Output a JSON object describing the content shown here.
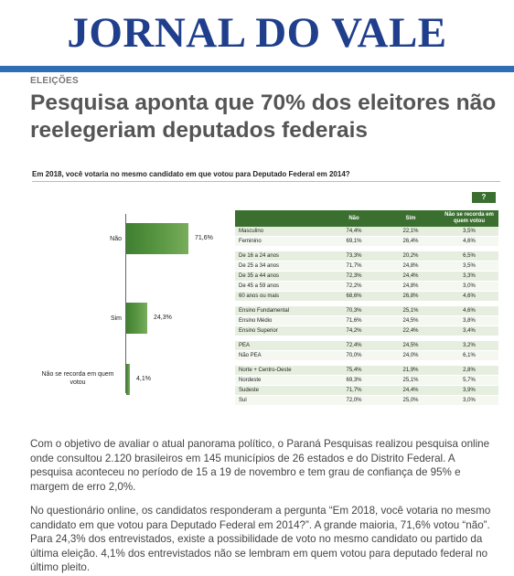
{
  "masthead": {
    "logo_text": "JORNAL DO VALE",
    "accent_color": "#1f3e8c",
    "bar_color": "#2f6db5"
  },
  "article": {
    "section": "ELEIÇÕES",
    "headline": "Pesquisa aponta que 70% dos eleitores não reelegeriam deputados federais",
    "paragraphs": [
      "Com o objetivo de avaliar o atual panorama político, o Paraná Pesquisas realizou pesquisa online onde consultou 2.120 brasileiros em 145 municípios  de 26 estados e do Distrito Federal. A pesquisa aconteceu no período de 15 a 19 de novembro e tem grau de confiança  de 95% e margem de erro 2,0%.",
      "No questionário online, os candidatos responderam a pergunta  “Em 2018, você votaria no mesmo candidato em que votou para Deputado Federal em 2014?”. A grande maioria, 71,6% votou “não”. Para 24,3% dos entrevistados, existe a possibilidade de voto no mesmo candidato ou partido da última eleição. 4,1% dos entrevistados não se lembram em quem votou para deputado federal no último pleito."
    ]
  },
  "figure": {
    "question": "Em 2018, você votaria no mesmo candidato em que votou para Deputado Federal em 2014?",
    "help_button": "?",
    "table": {
      "headers": [
        "",
        "Não",
        "Sim",
        "Não se recorda em quem votou"
      ],
      "groups": [
        [
          [
            "Masculino",
            "74,4%",
            "22,1%",
            "3,5%"
          ],
          [
            "Feminino",
            "69,1%",
            "26,4%",
            "4,6%"
          ]
        ],
        [
          [
            "De 16 a 24 anos",
            "73,3%",
            "20,2%",
            "6,5%"
          ],
          [
            "De 25 a 34 anos",
            "71,7%",
            "24,8%",
            "3,5%"
          ],
          [
            "De 35 a 44 anos",
            "72,3%",
            "24,4%",
            "3,3%"
          ],
          [
            "De 45 a 59 anos",
            "72,2%",
            "24,8%",
            "3,0%"
          ],
          [
            "60 anos ou mais",
            "68,6%",
            "26,8%",
            "4,6%"
          ]
        ],
        [
          [
            "Ensino Fundamental",
            "70,3%",
            "25,1%",
            "4,6%"
          ],
          [
            "Ensino Médio",
            "71,6%",
            "24,5%",
            "3,8%"
          ],
          [
            "Ensino Superior",
            "74,2%",
            "22,4%",
            "3,4%"
          ]
        ],
        [
          [
            "PEA",
            "72,4%",
            "24,5%",
            "3,2%"
          ],
          [
            "Não PEA",
            "70,0%",
            "24,0%",
            "6,1%"
          ]
        ],
        [
          [
            "Norte + Centro-Oeste",
            "75,4%",
            "21,9%",
            "2,8%"
          ],
          [
            "Nordeste",
            "69,3%",
            "25,1%",
            "5,7%"
          ],
          [
            "Sudeste",
            "71,7%",
            "24,4%",
            "3,9%"
          ],
          [
            "Sul",
            "72,0%",
            "25,0%",
            "3,0%"
          ]
        ]
      ]
    }
  },
  "chart_data": {
    "type": "bar",
    "orientation": "horizontal",
    "categories": [
      "Não",
      "Sim",
      "Não se recorda em quem votou"
    ],
    "values": [
      71.6,
      24.3,
      4.1
    ],
    "value_labels": [
      "71,6%",
      "24,3%",
      "4,1%"
    ],
    "title": "Em 2018, você votaria no mesmo candidato em que votou para Deputado Federal em 2014?",
    "xlabel": "",
    "ylabel": "",
    "xlim": [
      0,
      100
    ],
    "grid": false,
    "bar_color": "#3f7f30"
  }
}
